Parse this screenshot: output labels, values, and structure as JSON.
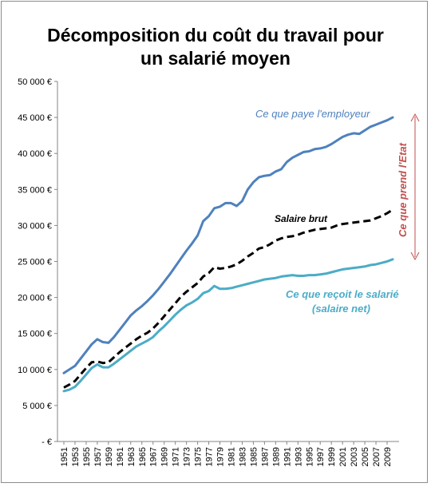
{
  "chart_data": {
    "type": "line",
    "title_lines": [
      "Décomposition du coût du travail pour",
      "un salarié moyen"
    ],
    "x": [
      1951,
      1952,
      1953,
      1954,
      1955,
      1956,
      1957,
      1958,
      1959,
      1960,
      1961,
      1962,
      1963,
      1964,
      1965,
      1966,
      1967,
      1968,
      1969,
      1970,
      1971,
      1972,
      1973,
      1974,
      1975,
      1976,
      1977,
      1978,
      1979,
      1980,
      1981,
      1982,
      1983,
      1984,
      1985,
      1986,
      1987,
      1988,
      1989,
      1990,
      1991,
      1992,
      1993,
      1994,
      1995,
      1996,
      1997,
      1998,
      1999,
      2000,
      2001,
      2002,
      2003,
      2004,
      2005,
      2006,
      2007,
      2008,
      2009,
      2010
    ],
    "x_tick_labels": [
      "1951",
      "1953",
      "1955",
      "1957",
      "1959",
      "1961",
      "1963",
      "1965",
      "1967",
      "1969",
      "1971",
      "1973",
      "1975",
      "1977",
      "1979",
      "1981",
      "1983",
      "1985",
      "1987",
      "1989",
      "1991",
      "1993",
      "1995",
      "1997",
      "1999",
      "2001",
      "2003",
      "2005",
      "2007",
      "2009"
    ],
    "y_tick_labels": [
      "-  €",
      "5 000 €",
      "10 000 €",
      "15 000 €",
      "20 000 €",
      "25 000 €",
      "30 000 €",
      "35 000 €",
      "40 000 €",
      "45 000 €",
      "50 000 €"
    ],
    "ylim": [
      0,
      50000
    ],
    "grid": false,
    "series": [
      {
        "name": "Ce que paye l'employeur",
        "color": "#4f81bd",
        "style": "solid",
        "values": [
          9500,
          10000,
          10500,
          11500,
          12500,
          13500,
          14200,
          13800,
          13700,
          14500,
          15500,
          16500,
          17500,
          18200,
          18800,
          19500,
          20300,
          21200,
          22200,
          23200,
          24300,
          25400,
          26500,
          27500,
          28600,
          30600,
          31300,
          32400,
          32600,
          33100,
          33100,
          32700,
          33400,
          35000,
          36000,
          36700,
          36900,
          37000,
          37500,
          37800,
          38800,
          39400,
          39800,
          40200,
          40300,
          40600,
          40700,
          40900,
          41300,
          41800,
          42300,
          42600,
          42800,
          42700,
          43200,
          43700,
          44000,
          44300,
          44600,
          45000
        ]
      },
      {
        "name": "Salaire brut",
        "color": "#000000",
        "style": "dashed",
        "values": [
          7500,
          7900,
          8400,
          9300,
          10200,
          11000,
          11100,
          10900,
          11000,
          11700,
          12400,
          13000,
          13600,
          14200,
          14700,
          15100,
          15700,
          16500,
          17400,
          18300,
          19200,
          20100,
          20800,
          21400,
          22000,
          22900,
          23400,
          24200,
          24000,
          24100,
          24300,
          24600,
          25100,
          25700,
          26200,
          26800,
          27000,
          27400,
          27900,
          28200,
          28400,
          28500,
          28700,
          29000,
          29200,
          29400,
          29500,
          29600,
          29700,
          30000,
          30200,
          30300,
          30400,
          30500,
          30600,
          30700,
          31000,
          31300,
          31700,
          32200
        ]
      },
      {
        "name": "Ce que reçoit le salarié",
        "color": "#4bacc6",
        "style": "solid",
        "values": [
          7000,
          7200,
          7600,
          8400,
          9300,
          10200,
          10700,
          10300,
          10300,
          10800,
          11400,
          12000,
          12600,
          13200,
          13600,
          14000,
          14500,
          15300,
          16000,
          16800,
          17600,
          18300,
          18900,
          19300,
          19800,
          20600,
          20900,
          21600,
          21200,
          21200,
          21300,
          21500,
          21700,
          21900,
          22100,
          22300,
          22500,
          22600,
          22700,
          22900,
          23000,
          23100,
          23000,
          23000,
          23100,
          23100,
          23200,
          23300,
          23500,
          23700,
          23900,
          24000,
          24100,
          24200,
          24300,
          24500,
          24600,
          24800,
          25000,
          25300
        ]
      }
    ],
    "annotations": {
      "employeur": "Ce que paye l'employeur",
      "brut": "Salaire brut",
      "net_line1": "Ce que reçoit le salarié",
      "net_line2": "(salaire net)",
      "etat": "Ce que prend l'Etat",
      "etat_color": "#c0504d"
    }
  }
}
